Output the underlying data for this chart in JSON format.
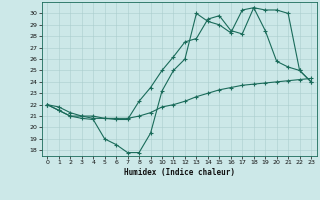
{
  "xlabel": "Humidex (Indice chaleur)",
  "xlim": [
    -0.5,
    23.5
  ],
  "ylim": [
    17.5,
    31.0
  ],
  "yticks": [
    18,
    19,
    20,
    21,
    22,
    23,
    24,
    25,
    26,
    27,
    28,
    29,
    30
  ],
  "xticks": [
    0,
    1,
    2,
    3,
    4,
    5,
    6,
    7,
    8,
    9,
    10,
    11,
    12,
    13,
    14,
    15,
    16,
    17,
    18,
    19,
    20,
    21,
    22,
    23
  ],
  "bg_color": "#cce8e8",
  "line_color": "#1a6b5a",
  "line1_x": [
    0,
    1,
    2,
    3,
    4,
    5,
    6,
    7,
    8,
    9,
    10,
    11,
    12,
    13,
    14,
    15,
    16,
    17,
    18,
    19,
    20,
    21,
    22,
    23
  ],
  "line1_y": [
    22.0,
    21.8,
    21.3,
    21.0,
    21.0,
    20.8,
    20.8,
    20.8,
    21.0,
    21.3,
    21.8,
    22.0,
    22.3,
    22.7,
    23.0,
    23.3,
    23.5,
    23.7,
    23.8,
    23.9,
    24.0,
    24.1,
    24.2,
    24.3
  ],
  "line2_x": [
    0,
    1,
    2,
    3,
    4,
    5,
    6,
    7,
    8,
    9,
    10,
    11,
    12,
    13,
    14,
    15,
    16,
    17,
    18,
    19,
    20,
    21,
    22,
    23
  ],
  "line2_y": [
    22.0,
    21.5,
    21.0,
    20.8,
    20.7,
    19.0,
    18.5,
    17.8,
    17.8,
    19.5,
    23.2,
    25.0,
    26.0,
    30.0,
    29.3,
    29.0,
    28.3,
    30.3,
    30.5,
    28.5,
    25.8,
    25.3,
    25.0,
    24.0
  ],
  "line3_x": [
    0,
    1,
    2,
    3,
    4,
    5,
    6,
    7,
    8,
    9,
    10,
    11,
    12,
    13,
    14,
    15,
    16,
    17,
    18,
    19,
    20,
    21,
    22,
    23
  ],
  "line3_y": [
    22.0,
    21.5,
    21.0,
    21.0,
    20.8,
    20.8,
    20.7,
    20.7,
    22.3,
    23.5,
    25.0,
    26.2,
    27.5,
    27.8,
    29.5,
    29.8,
    28.5,
    28.2,
    30.5,
    30.3,
    30.3,
    30.0,
    25.0,
    24.0
  ]
}
